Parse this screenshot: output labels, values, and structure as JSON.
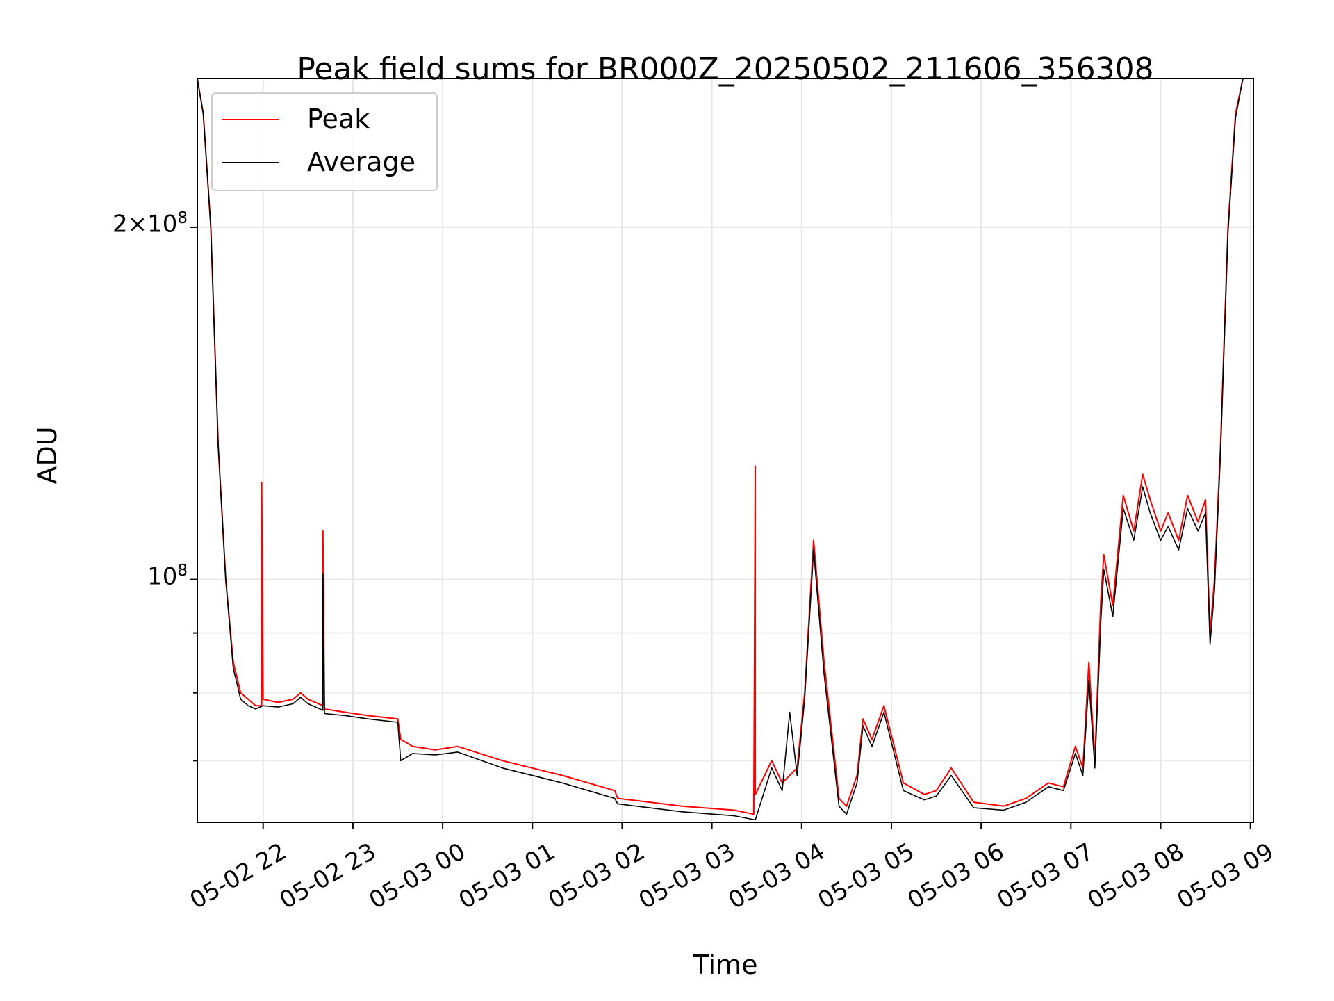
{
  "chart_data": {
    "type": "line",
    "title": "Peak field sums for BR000Z_20250502_211606_356308",
    "xlabel": "Time",
    "ylabel": "ADU",
    "yscale": "log",
    "grid": true,
    "legend_placement": "upper-left",
    "xlim": [
      "2025-05-02 21:16",
      "2025-05-03 09:02"
    ],
    "ylim": [
      62000000,
      268000000
    ],
    "x_tick_labels": [
      "05-02 22",
      "05-02 23",
      "05-03 00",
      "05-03 01",
      "05-03 02",
      "05-03 03",
      "05-03 04",
      "05-03 05",
      "05-03 06",
      "05-03 07",
      "05-03 08",
      "05-03 09"
    ],
    "x_ticks": [
      "2025-05-02 22:00",
      "2025-05-02 23:00",
      "2025-05-03 00:00",
      "2025-05-03 01:00",
      "2025-05-03 02:00",
      "2025-05-03 03:00",
      "2025-05-03 04:00",
      "2025-05-03 05:00",
      "2025-05-03 06:00",
      "2025-05-03 07:00",
      "2025-05-03 08:00",
      "2025-05-03 09:00"
    ],
    "y_tick_labels": [
      {
        "value": 200000000,
        "mantissa": "2",
        "times": "×",
        "base": "10",
        "exp": "8"
      },
      {
        "value": 100000000,
        "mantissa": "",
        "times": "",
        "base": "10",
        "exp": "8"
      }
    ],
    "y_minor_ticks": [
      60000000,
      70000000,
      80000000,
      90000000
    ],
    "series": [
      {
        "name": "Peak",
        "color": "#ff0000",
        "x": [
          "2025-05-02 21:16",
          "2025-05-02 21:20",
          "2025-05-02 21:25",
          "2025-05-02 21:30",
          "2025-05-02 21:35",
          "2025-05-02 21:40",
          "2025-05-02 21:45",
          "2025-05-02 21:50",
          "2025-05-02 21:55",
          "2025-05-02 21:59",
          "2025-05-02 21:59",
          "2025-05-02 22:00",
          "2025-05-02 22:10",
          "2025-05-02 22:20",
          "2025-05-02 22:25",
          "2025-05-02 22:30",
          "2025-05-02 22:40",
          "2025-05-02 22:40",
          "2025-05-02 22:41",
          "2025-05-02 22:55",
          "2025-05-02 23:10",
          "2025-05-02 23:30",
          "2025-05-02 23:32",
          "2025-05-02 23:40",
          "2025-05-02 23:55",
          "2025-05-03 00:10",
          "2025-05-03 00:40",
          "2025-05-03 01:20",
          "2025-05-03 01:55",
          "2025-05-03 01:57",
          "2025-05-03 02:40",
          "2025-05-03 03:15",
          "2025-05-03 03:28",
          "2025-05-03 03:29",
          "2025-05-03 03:29",
          "2025-05-03 03:40",
          "2025-05-03 03:47",
          "03:52",
          "2025-05-03 03:57",
          "2025-05-03 04:02",
          "2025-05-03 04:08",
          "2025-05-03 04:15",
          "2025-05-03 04:25",
          "2025-05-03 04:30",
          "2025-05-03 04:37",
          "2025-05-03 04:41",
          "2025-05-03 04:47",
          "2025-05-03 04:55",
          "2025-05-03 05:08",
          "2025-05-03 05:22",
          "2025-05-03 05:30",
          "2025-05-03 05:40",
          "2025-05-03 05:55",
          "2025-05-03 06:15",
          "2025-05-03 06:30",
          "2025-05-03 06:45",
          "2025-05-03 06:55",
          "2025-05-03 07:03",
          "2025-05-03 07:08",
          "2025-05-03 07:12",
          "2025-05-03 07:16",
          "2025-05-03 07:20",
          "2025-05-03 07:22",
          "2025-05-03 07:28",
          "2025-05-03 07:35",
          "2025-05-03 07:42",
          "2025-05-03 07:48",
          "2025-05-03 07:53",
          "2025-05-03 08:00",
          "2025-05-03 08:05",
          "2025-05-03 08:12",
          "2025-05-03 08:18",
          "2025-05-03 08:25",
          "2025-05-03 08:30",
          "2025-05-03 08:33",
          "2025-05-03 08:36",
          "2025-05-03 08:40",
          "2025-05-03 08:45",
          "2025-05-03 08:50",
          "2025-05-03 08:55",
          "2025-05-03 09:02"
        ],
        "y": [
          268000000,
          250000000,
          200000000,
          130000000,
          100000000,
          85000000,
          80000000,
          79000000,
          78000000,
          78000000,
          121000000,
          79000000,
          78500000,
          79000000,
          80000000,
          79000000,
          78000000,
          110000000,
          77500000,
          77000000,
          76500000,
          76000000,
          73000000,
          72000000,
          71500000,
          72000000,
          70000000,
          68000000,
          66000000,
          65000000,
          64000000,
          63500000,
          63000000,
          125000000,
          65500000,
          70000000,
          67000000,
          78000000,
          69000000,
          80000000,
          108000000,
          85000000,
          65000000,
          64000000,
          68000000,
          76000000,
          73000000,
          78000000,
          67000000,
          65500000,
          66000000,
          69000000,
          64500000,
          64000000,
          65000000,
          67000000,
          66500000,
          72000000,
          69000000,
          85000000,
          70000000,
          96000000,
          105000000,
          95000000,
          118000000,
          110000000,
          123000000,
          117000000,
          110000000,
          114000000,
          108000000,
          118000000,
          112000000,
          117000000,
          90000000,
          100000000,
          130000000,
          200000000,
          250000000,
          268000000,
          268000000
        ]
      },
      {
        "name": "Average",
        "color": "#000000",
        "x": [
          "2025-05-02 21:16",
          "2025-05-02 21:20",
          "2025-05-02 21:25",
          "2025-05-02 21:30",
          "2025-05-02 21:35",
          "2025-05-02 21:40",
          "2025-05-02 21:45",
          "2025-05-02 21:50",
          "2025-05-02 21:55",
          "2025-05-02 22:00",
          "2025-05-02 22:10",
          "2025-05-02 22:20",
          "2025-05-02 22:25",
          "2025-05-02 22:30",
          "2025-05-02 22:40",
          "2025-05-02 22:40",
          "2025-05-02 22:41",
          "2025-05-02 22:55",
          "2025-05-02 23:10",
          "2025-05-02 23:30",
          "2025-05-02 23:32",
          "2025-05-02 23:40",
          "2025-05-02 23:55",
          "2025-05-03 00:10",
          "2025-05-03 00:40",
          "2025-05-03 01:20",
          "2025-05-03 01:55",
          "2025-05-03 01:57",
          "2025-05-03 02:40",
          "2025-05-03 03:15",
          "2025-05-03 03:29",
          "2025-05-03 03:40",
          "2025-05-03 03:47",
          "2025-05-03 03:52",
          "2025-05-03 03:57",
          "2025-05-03 04:02",
          "2025-05-03 04:08",
          "2025-05-03 04:15",
          "2025-05-03 04:25",
          "2025-05-03 04:30",
          "2025-05-03 04:37",
          "2025-05-03 04:41",
          "2025-05-03 04:47",
          "2025-05-03 04:55",
          "2025-05-03 05:08",
          "2025-05-03 05:22",
          "2025-05-03 05:30",
          "2025-05-03 05:40",
          "2025-05-03 05:55",
          "2025-05-03 06:15",
          "2025-05-03 06:30",
          "2025-05-03 06:45",
          "2025-05-03 06:55",
          "2025-05-03 07:03",
          "2025-05-03 07:08",
          "2025-05-03 07:12",
          "2025-05-03 07:16",
          "2025-05-03 07:20",
          "2025-05-03 07:22",
          "2025-05-03 07:28",
          "2025-05-03 07:35",
          "2025-05-03 07:42",
          "2025-05-03 07:48",
          "2025-05-03 07:53",
          "2025-05-03 08:00",
          "2025-05-03 08:05",
          "2025-05-03 08:12",
          "2025-05-03 08:18",
          "2025-05-03 08:25",
          "2025-05-03 08:30",
          "2025-05-03 08:33",
          "2025-05-03 08:36",
          "2025-05-03 08:40",
          "2025-05-03 08:45",
          "2025-05-03 08:50",
          "2025-05-03 08:55",
          "2025-05-03 09:02"
        ],
        "y": [
          268000000,
          250000000,
          200000000,
          130000000,
          100000000,
          84000000,
          79000000,
          78000000,
          77500000,
          78000000,
          77800000,
          78300000,
          79300000,
          78300000,
          77300000,
          101000000,
          76800000,
          76500000,
          76000000,
          75500000,
          70000000,
          71000000,
          70800000,
          71200000,
          69000000,
          67000000,
          65000000,
          64300000,
          63300000,
          62800000,
          62300000,
          69000000,
          66000000,
          77000000,
          68000000,
          79000000,
          106000000,
          83000000,
          64000000,
          63000000,
          67000000,
          75000000,
          72000000,
          77000000,
          66000000,
          64800000,
          65300000,
          68000000,
          63800000,
          63500000,
          64500000,
          66500000,
          66000000,
          71000000,
          68000000,
          82000000,
          69000000,
          92000000,
          102000000,
          93000000,
          115000000,
          108000000,
          120000000,
          114000000,
          108000000,
          111000000,
          106000000,
          115000000,
          110000000,
          114000000,
          88000000,
          98000000,
          128000000,
          198000000,
          248000000,
          268000000,
          268000000
        ]
      }
    ]
  },
  "legend": {
    "items": [
      {
        "label": "Peak",
        "color": "#ff0000"
      },
      {
        "label": "Average",
        "color": "#000000"
      }
    ]
  }
}
